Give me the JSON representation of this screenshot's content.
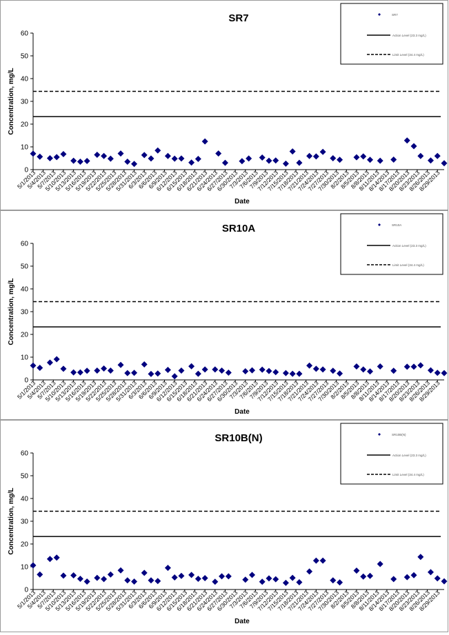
{
  "shared": {
    "ylabel": "Concentration, mg/L",
    "xlabel": "Date",
    "date_ticks": [
      "5/1/2013",
      "5/4/2013",
      "5/7/2013",
      "5/10/2013",
      "5/13/2013",
      "5/16/2013",
      "5/19/2013",
      "5/22/2013",
      "5/25/2013",
      "5/28/2013",
      "5/31/2013",
      "6/3/2013",
      "6/6/2013",
      "6/9/2013",
      "6/12/2013",
      "6/15/2013",
      "6/18/2013",
      "6/21/2013",
      "6/24/2013",
      "6/27/2013",
      "6/30/2013",
      "7/3/2013",
      "7/6/2013",
      "7/9/2013",
      "7/12/2013",
      "7/15/2013",
      "7/18/2013",
      "7/21/2013",
      "7/24/2013",
      "7/27/2013",
      "7/30/2013",
      "8/2/2013",
      "8/5/2013",
      "8/8/2013",
      "8/11/2013",
      "8/14/2013",
      "8/17/2013",
      "8/20/2013",
      "8/23/2013",
      "8/26/2013",
      "8/29/2013"
    ],
    "y_ticks": [
      0,
      10,
      20,
      30,
      40,
      50,
      60
    ],
    "marker_color": "#00007f",
    "line_color": "#000000"
  },
  "chart_data": [
    {
      "type": "scatter",
      "title": "SR7",
      "ylim": [
        0,
        60
      ],
      "xlim": [
        "5/1/2013",
        "8/31/2013"
      ],
      "legend_placement": "top-right",
      "legend": {
        "series": "SR7",
        "solid_line": "Action Level (23.3 mg/L)",
        "dashed_line": "Limit Level (34.4 mg/L)"
      },
      "hlines": {
        "solid": 23.3,
        "dashed": 34.4
      },
      "series": [
        {
          "name": "SR7",
          "points": [
            [
              "5/1/2013",
              7.0
            ],
            [
              "5/3/2013",
              5.7
            ],
            [
              "5/6/2013",
              5.0
            ],
            [
              "5/8/2013",
              5.5
            ],
            [
              "5/10/2013",
              6.8
            ],
            [
              "5/13/2013",
              3.9
            ],
            [
              "5/15/2013",
              3.5
            ],
            [
              "5/17/2013",
              3.8
            ],
            [
              "5/20/2013",
              6.5
            ],
            [
              "5/22/2013",
              6.0
            ],
            [
              "5/24/2013",
              4.8
            ],
            [
              "5/27/2013",
              7.1
            ],
            [
              "5/29/2013",
              3.5
            ],
            [
              "5/31/2013",
              2.5
            ],
            [
              "6/3/2013",
              6.4
            ],
            [
              "6/5/2013",
              4.9
            ],
            [
              "6/7/2013",
              8.4
            ],
            [
              "6/10/2013",
              6.0
            ],
            [
              "6/12/2013",
              4.8
            ],
            [
              "6/14/2013",
              4.9
            ],
            [
              "6/17/2013",
              3.1
            ],
            [
              "6/19/2013",
              4.7
            ],
            [
              "6/21/2013",
              12.4
            ],
            [
              "6/25/2013",
              7.1
            ],
            [
              "6/27/2013",
              3.0
            ],
            [
              "7/2/2013",
              3.7
            ],
            [
              "7/4/2013",
              4.9
            ],
            [
              "7/8/2013",
              5.3
            ],
            [
              "7/10/2013",
              3.9
            ],
            [
              "7/12/2013",
              4.0
            ],
            [
              "7/15/2013",
              2.6
            ],
            [
              "7/17/2013",
              8.0
            ],
            [
              "7/19/2013",
              3.0
            ],
            [
              "7/22/2013",
              6.0
            ],
            [
              "7/24/2013",
              5.8
            ],
            [
              "7/26/2013",
              7.8
            ],
            [
              "7/29/2013",
              5.0
            ],
            [
              "7/31/2013",
              4.3
            ],
            [
              "8/5/2013",
              5.4
            ],
            [
              "8/7/2013",
              5.8
            ],
            [
              "8/9/2013",
              4.3
            ],
            [
              "8/12/2013",
              3.9
            ],
            [
              "8/16/2013",
              4.4
            ],
            [
              "8/20/2013",
              12.8
            ],
            [
              "8/22/2013",
              10.3
            ],
            [
              "8/24/2013",
              6.0
            ],
            [
              "8/27/2013",
              4.0
            ],
            [
              "8/29/2013",
              6.0
            ],
            [
              "8/31/2013",
              2.8
            ]
          ]
        }
      ]
    },
    {
      "type": "scatter",
      "title": "SR10A",
      "ylim": [
        0,
        60
      ],
      "xlim": [
        "5/1/2013",
        "8/31/2013"
      ],
      "legend_placement": "top-right",
      "legend": {
        "series": "SR10A",
        "solid_line": "Action Level (23.3 mg/L)",
        "dashed_line": "Limit Level (34.4 mg/L)"
      },
      "hlines": {
        "solid": 23.3,
        "dashed": 34.4
      },
      "series": [
        {
          "name": "SR10A",
          "points": [
            [
              "5/1/2013",
              6.3
            ],
            [
              "5/3/2013",
              5.3
            ],
            [
              "5/6/2013",
              7.6
            ],
            [
              "5/8/2013",
              9.1
            ],
            [
              "5/10/2013",
              4.9
            ],
            [
              "5/13/2013",
              3.3
            ],
            [
              "5/15/2013",
              3.3
            ],
            [
              "5/17/2013",
              4.0
            ],
            [
              "5/20/2013",
              4.1
            ],
            [
              "5/22/2013",
              5.0
            ],
            [
              "5/24/2013",
              4.1
            ],
            [
              "5/27/2013",
              6.6
            ],
            [
              "5/29/2013",
              3.0
            ],
            [
              "5/31/2013",
              3.1
            ],
            [
              "6/3/2013",
              6.8
            ],
            [
              "6/5/2013",
              2.6
            ],
            [
              "6/7/2013",
              2.8
            ],
            [
              "6/10/2013",
              4.4
            ],
            [
              "6/12/2013",
              1.6
            ],
            [
              "6/14/2013",
              4.1
            ],
            [
              "6/17/2013",
              6.0
            ],
            [
              "6/19/2013",
              2.7
            ],
            [
              "6/21/2013",
              4.6
            ],
            [
              "6/24/2013",
              4.6
            ],
            [
              "6/26/2013",
              4.1
            ],
            [
              "6/28/2013",
              3.2
            ],
            [
              "7/3/2013",
              3.8
            ],
            [
              "7/5/2013",
              4.2
            ],
            [
              "7/8/2013",
              4.5
            ],
            [
              "7/10/2013",
              3.9
            ],
            [
              "7/12/2013",
              3.4
            ],
            [
              "7/15/2013",
              3.0
            ],
            [
              "7/17/2013",
              2.7
            ],
            [
              "7/19/2013",
              2.7
            ],
            [
              "7/22/2013",
              6.3
            ],
            [
              "7/24/2013",
              4.9
            ],
            [
              "7/26/2013",
              4.6
            ],
            [
              "7/29/2013",
              4.0
            ],
            [
              "7/31/2013",
              2.8
            ],
            [
              "8/5/2013",
              5.9
            ],
            [
              "8/7/2013",
              4.6
            ],
            [
              "8/9/2013",
              3.7
            ],
            [
              "8/12/2013",
              5.9
            ],
            [
              "8/16/2013",
              4.0
            ],
            [
              "8/20/2013",
              5.8
            ],
            [
              "8/22/2013",
              5.8
            ],
            [
              "8/24/2013",
              6.4
            ],
            [
              "8/27/2013",
              4.2
            ],
            [
              "8/29/2013",
              3.1
            ],
            [
              "8/31/2013",
              3.0
            ]
          ]
        }
      ]
    },
    {
      "type": "scatter",
      "title": "SR10B(N)",
      "ylim": [
        0,
        60
      ],
      "xlim": [
        "5/1/2013",
        "8/31/2013"
      ],
      "legend_placement": "top-right",
      "legend": {
        "series": "SR10B(N)",
        "solid_line": "Action Level (23.3 mg/L)",
        "dashed_line": "Limit Level (34.4 mg/L)"
      },
      "hlines": {
        "solid": 23.3,
        "dashed": 34.4
      },
      "series": [
        {
          "name": "SR10B(N)",
          "points": [
            [
              "5/1/2013",
              10.6
            ],
            [
              "5/3/2013",
              6.6
            ],
            [
              "5/6/2013",
              13.4
            ],
            [
              "5/8/2013",
              14.0
            ],
            [
              "5/10/2013",
              6.1
            ],
            [
              "5/13/2013",
              6.2
            ],
            [
              "5/15/2013",
              4.7
            ],
            [
              "5/17/2013",
              3.5
            ],
            [
              "5/20/2013",
              5.1
            ],
            [
              "5/22/2013",
              4.6
            ],
            [
              "5/24/2013",
              6.6
            ],
            [
              "5/27/2013",
              8.4
            ],
            [
              "5/29/2013",
              4.0
            ],
            [
              "5/31/2013",
              3.5
            ],
            [
              "6/3/2013",
              7.3
            ],
            [
              "6/5/2013",
              4.0
            ],
            [
              "6/7/2013",
              3.7
            ],
            [
              "6/10/2013",
              9.5
            ],
            [
              "6/12/2013",
              5.3
            ],
            [
              "6/14/2013",
              6.0
            ],
            [
              "6/17/2013",
              6.4
            ],
            [
              "6/19/2013",
              4.7
            ],
            [
              "6/21/2013",
              5.0
            ],
            [
              "6/24/2013",
              3.4
            ],
            [
              "6/26/2013",
              5.8
            ],
            [
              "6/28/2013",
              5.8
            ],
            [
              "7/3/2013",
              4.3
            ],
            [
              "7/5/2013",
              6.4
            ],
            [
              "7/8/2013",
              3.4
            ],
            [
              "7/10/2013",
              4.9
            ],
            [
              "7/12/2013",
              4.5
            ],
            [
              "7/15/2013",
              2.9
            ],
            [
              "7/17/2013",
              5.1
            ],
            [
              "7/19/2013",
              3.2
            ],
            [
              "7/22/2013",
              7.9
            ],
            [
              "7/24/2013",
              12.7
            ],
            [
              "7/26/2013",
              12.7
            ],
            [
              "7/29/2013",
              4.0
            ],
            [
              "7/31/2013",
              3.1
            ],
            [
              "8/5/2013",
              8.3
            ],
            [
              "8/7/2013",
              5.7
            ],
            [
              "8/9/2013",
              6.0
            ],
            [
              "8/12/2013",
              11.2
            ],
            [
              "8/16/2013",
              4.6
            ],
            [
              "8/20/2013",
              5.4
            ],
            [
              "8/22/2013",
              6.3
            ],
            [
              "8/24/2013",
              14.3
            ],
            [
              "8/27/2013",
              7.6
            ],
            [
              "8/29/2013",
              4.9
            ],
            [
              "8/31/2013",
              3.6
            ]
          ]
        }
      ]
    }
  ]
}
